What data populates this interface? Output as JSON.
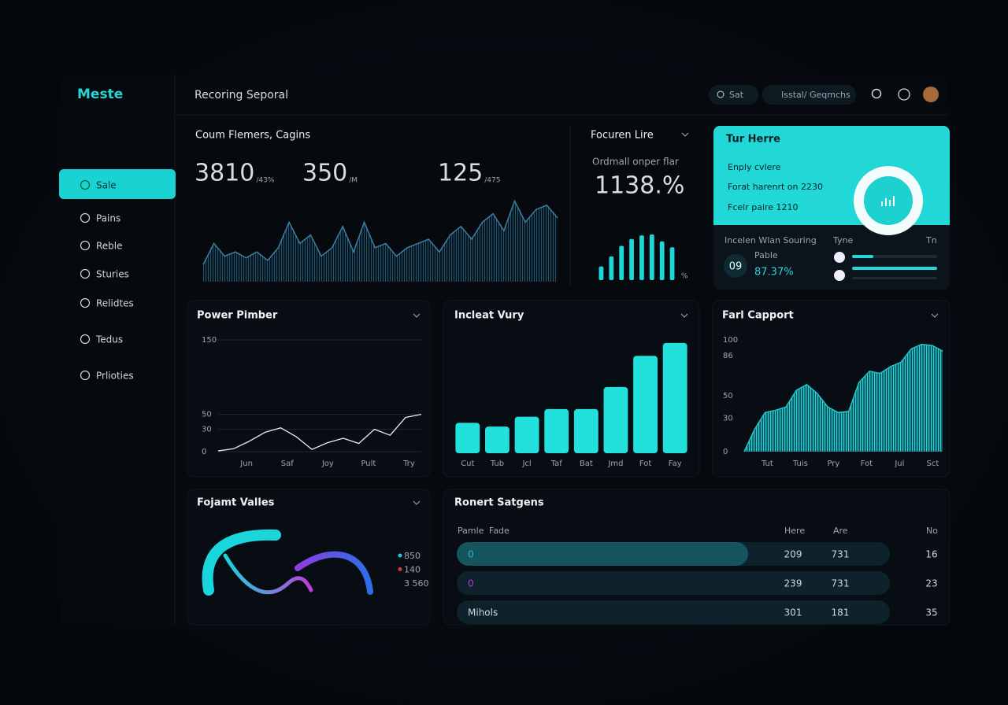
{
  "brand": "Meste",
  "header": {
    "title": "Recoring Seporal",
    "buttons": [
      "Sat",
      "Isstal/ Geqmchs"
    ]
  },
  "sidebar": [
    "Sale",
    "Pains",
    "Reble",
    "Sturies",
    "Relidtes",
    "Tedus",
    "Prlioties"
  ],
  "summary": {
    "title": "Coum Flemers, Cagins",
    "stats": [
      {
        "value": "3810",
        "unit": "/43%"
      },
      {
        "value": "350",
        "unit": "/M"
      },
      {
        "value": "125",
        "unit": "/475"
      }
    ]
  },
  "focus": {
    "title": "Focuren Lire",
    "label": "Ordmall onper flar",
    "value": "1138.%",
    "unit": "%"
  },
  "highlight": {
    "title": "Tur Herre",
    "lines": [
      "Enply cvlere",
      "Forat harenrt on 2230",
      "Fcelr paire 1210"
    ]
  },
  "status": {
    "title": "Incelen Wlan Souring",
    "columns": [
      "Tyne",
      "Tn"
    ],
    "badge": "09",
    "label": "Pable",
    "value": "87.37%",
    "progress": [
      25,
      100
    ],
    "progress_max": 100
  },
  "gauge": {
    "title": "Fojamt Valles",
    "legend": [
      {
        "label": "850",
        "color": "#1ec8e0"
      },
      {
        "label": "140",
        "color": "#e0304a"
      },
      {
        "label": "3 560"
      }
    ]
  },
  "table": {
    "title": "Ronert Satgens",
    "headers": [
      "Pamle",
      "Fade",
      "Here",
      "Are",
      "No"
    ],
    "rows": [
      [
        "0",
        "209",
        "731",
        "16"
      ],
      [
        "0",
        "239",
        "731",
        "23"
      ],
      [
        "Mihols",
        "301",
        "181",
        "35"
      ]
    ]
  },
  "chart_data": [
    {
      "type": "area",
      "color": "#3c7fa3",
      "ylim": [
        0,
        100
      ],
      "values": [
        20,
        45,
        30,
        35,
        28,
        35,
        25,
        40,
        70,
        45,
        55,
        30,
        40,
        65,
        35,
        70,
        40,
        45,
        30,
        40,
        45,
        50,
        35,
        55,
        65,
        50,
        70,
        80,
        60,
        95,
        70,
        85,
        90,
        75
      ]
    },
    {
      "type": "bar",
      "color": "#1fd6d6",
      "ylim": [
        0,
        100
      ],
      "values": [
        30,
        52,
        75,
        90,
        98,
        100,
        85,
        72
      ]
    },
    {
      "type": "line",
      "title": "Power Pimber",
      "color": "#e8eef2",
      "ylim": [
        0,
        150
      ],
      "yticks": [
        0,
        30,
        50,
        150
      ],
      "values": [
        1,
        4,
        14,
        26,
        32,
        20,
        3,
        12,
        18,
        11,
        30,
        22,
        46,
        50
      ],
      "x_labels": [
        "Jun",
        "Saf",
        "Joy",
        "Pult",
        "Try"
      ],
      "grid": true
    },
    {
      "type": "bar",
      "title": "Incleat Vury",
      "color": "#22e0dc",
      "ylim": [
        0,
        150
      ],
      "categories": [
        "Cut",
        "Tub",
        "Jcl",
        "Taf",
        "Bat",
        "Jmd",
        "Fot",
        "Fay"
      ],
      "values": [
        40,
        35,
        48,
        58,
        58,
        87,
        128,
        145
      ]
    },
    {
      "type": "area",
      "title": "Farl Capport",
      "color": "#1fc9cc",
      "ylim": [
        0,
        100
      ],
      "yticks": [
        0,
        30,
        50,
        86,
        100
      ],
      "values": [
        0,
        20,
        35,
        37,
        40,
        55,
        60,
        52,
        40,
        35,
        36,
        62,
        72,
        70,
        76,
        80,
        92,
        96,
        95,
        90
      ],
      "x_labels": [
        "Tut",
        "Tuis",
        "Pry",
        "Fot",
        "Jul",
        "Sct"
      ]
    }
  ]
}
